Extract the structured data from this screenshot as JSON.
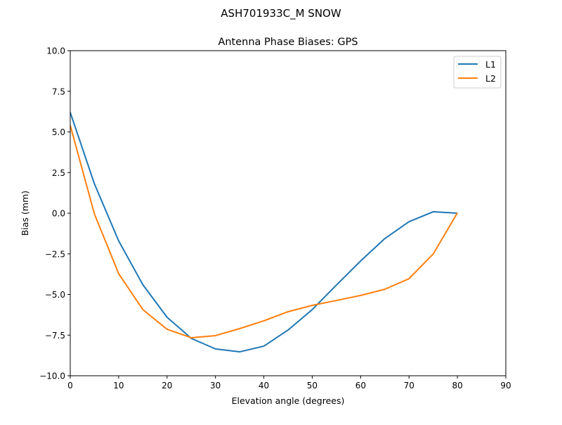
{
  "figure": {
    "suptitle": "ASH701933C_M    SNOW"
  },
  "chart_data": {
    "type": "line",
    "title": "Antenna Phase Biases: GPS",
    "xlabel": "Elevation angle (degrees)",
    "ylabel": "Bias (mm)",
    "xlim": [
      0,
      90
    ],
    "ylim": [
      -10,
      10
    ],
    "xticks": [
      "0",
      "10",
      "20",
      "30",
      "40",
      "50",
      "60",
      "70",
      "80",
      "90"
    ],
    "yticks": [
      "−10.0",
      "−7.5",
      "−5.0",
      "−2.5",
      "0.0",
      "2.5",
      "5.0",
      "7.5",
      "10.0"
    ],
    "grid": false,
    "legend_position": "top-right",
    "x": [
      0,
      5,
      10,
      15,
      20,
      25,
      30,
      35,
      40,
      45,
      50,
      55,
      60,
      65,
      70,
      75,
      80
    ],
    "series": [
      {
        "name": "L1",
        "color": "#1f77b4",
        "values": [
          6.2,
          1.8,
          -1.7,
          -4.4,
          -6.4,
          -7.7,
          -8.35,
          -8.53,
          -8.18,
          -7.19,
          -5.93,
          -4.42,
          -2.94,
          -1.56,
          -0.52,
          0.09,
          0.0
        ]
      },
      {
        "name": "L2",
        "color": "#ff7f0e",
        "values": [
          5.4,
          -0.05,
          -3.72,
          -5.93,
          -7.14,
          -7.66,
          -7.53,
          -7.1,
          -6.62,
          -6.06,
          -5.67,
          -5.37,
          -5.06,
          -4.68,
          -4.03,
          -2.51,
          0.02
        ]
      }
    ]
  }
}
